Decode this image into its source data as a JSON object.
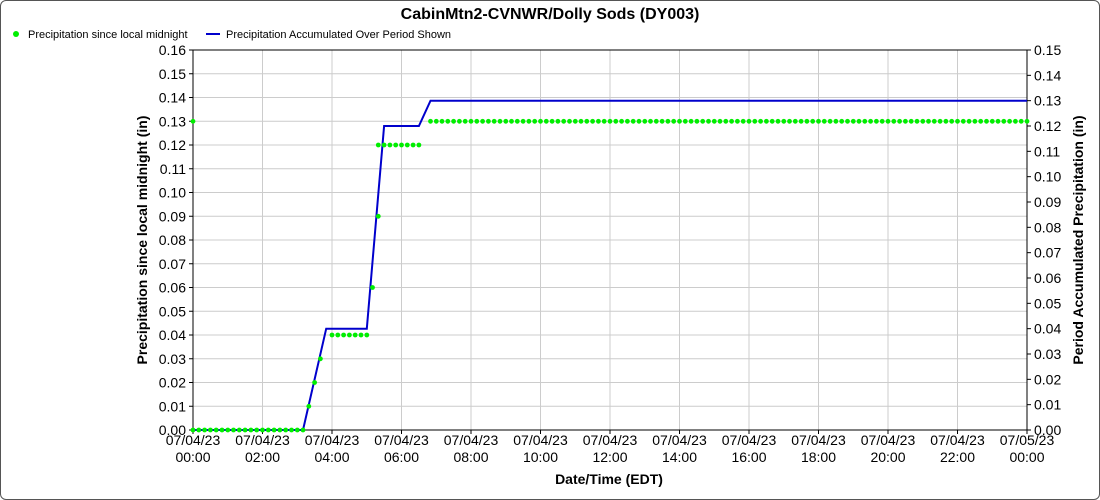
{
  "chart_data": {
    "type": "line",
    "title": "CabinMtn2-CVNWR/Dolly Sods (DY003)",
    "xlabel": "Date/Time (EDT)",
    "ylabel_left": "Precipitation since local midnight (in)",
    "ylabel_right": "Period Accumulated Precipitation (in)",
    "ylim_left": [
      0,
      0.16
    ],
    "ylim_right": [
      0,
      0.15
    ],
    "xlim": [
      "07/04/23 00:00",
      "07/05/23 00:00"
    ],
    "grid": true,
    "legend_position": "top-left",
    "x_ticks": [
      {
        "date": "07/04/23",
        "time": "00:00"
      },
      {
        "date": "07/04/23",
        "time": "02:00"
      },
      {
        "date": "07/04/23",
        "time": "04:00"
      },
      {
        "date": "07/04/23",
        "time": "06:00"
      },
      {
        "date": "07/04/23",
        "time": "08:00"
      },
      {
        "date": "07/04/23",
        "time": "10:00"
      },
      {
        "date": "07/04/23",
        "time": "12:00"
      },
      {
        "date": "07/04/23",
        "time": "14:00"
      },
      {
        "date": "07/04/23",
        "time": "16:00"
      },
      {
        "date": "07/04/23",
        "time": "18:00"
      },
      {
        "date": "07/04/23",
        "time": "20:00"
      },
      {
        "date": "07/04/23",
        "time": "22:00"
      },
      {
        "date": "07/05/23",
        "time": "00:00"
      }
    ],
    "y_ticks_left": [
      "0.00",
      "0.01",
      "0.02",
      "0.03",
      "0.04",
      "0.05",
      "0.06",
      "0.07",
      "0.08",
      "0.09",
      "0.10",
      "0.11",
      "0.12",
      "0.13",
      "0.14",
      "0.15",
      "0.16"
    ],
    "y_ticks_right": [
      "0.00",
      "0.01",
      "0.02",
      "0.03",
      "0.04",
      "0.05",
      "0.06",
      "0.07",
      "0.08",
      "0.09",
      "0.10",
      "0.11",
      "0.12",
      "0.13",
      "0.14",
      "0.15"
    ],
    "series": [
      {
        "name": "Precipitation since local midnight",
        "axis": "left",
        "style": "points",
        "color": "#00ee00",
        "x": [
          "07/03/23 23:50"
        ],
        "y": [
          0.13
        ],
        "segments": [
          {
            "from": "07/04/23 00:00",
            "to": "07/04/23 03:10",
            "every_minutes": 10,
            "value": 0.0
          },
          {
            "from": "07/04/23 04:00",
            "to": "07/04/23 05:00",
            "every_minutes": 10,
            "value": 0.04
          },
          {
            "from": "07/04/23 05:20",
            "to": "07/04/23 06:30",
            "every_minutes": 10,
            "value": 0.12
          },
          {
            "from": "07/04/23 06:50",
            "to": "07/05/23 00:00",
            "every_minutes": 10,
            "value": 0.13
          }
        ],
        "points": [
          {
            "x": "07/04/23 03:20",
            "y": 0.01
          },
          {
            "x": "07/04/23 03:30",
            "y": 0.02
          },
          {
            "x": "07/04/23 03:40",
            "y": 0.03
          },
          {
            "x": "07/04/23 05:10",
            "y": 0.06
          },
          {
            "x": "07/04/23 05:20",
            "y": 0.09
          }
        ]
      },
      {
        "name": "Precipitation Accumulated Over Period Shown",
        "axis": "right",
        "style": "line",
        "color": "#0000cc",
        "points": [
          {
            "x": "07/04/23 00:00",
            "y": 0.0
          },
          {
            "x": "07/04/23 03:10",
            "y": 0.0
          },
          {
            "x": "07/04/23 03:50",
            "y": 0.04
          },
          {
            "x": "07/04/23 05:00",
            "y": 0.04
          },
          {
            "x": "07/04/23 05:30",
            "y": 0.12
          },
          {
            "x": "07/04/23 06:30",
            "y": 0.12
          },
          {
            "x": "07/04/23 06:50",
            "y": 0.13
          },
          {
            "x": "07/05/23 00:00",
            "y": 0.13
          }
        ]
      }
    ]
  }
}
